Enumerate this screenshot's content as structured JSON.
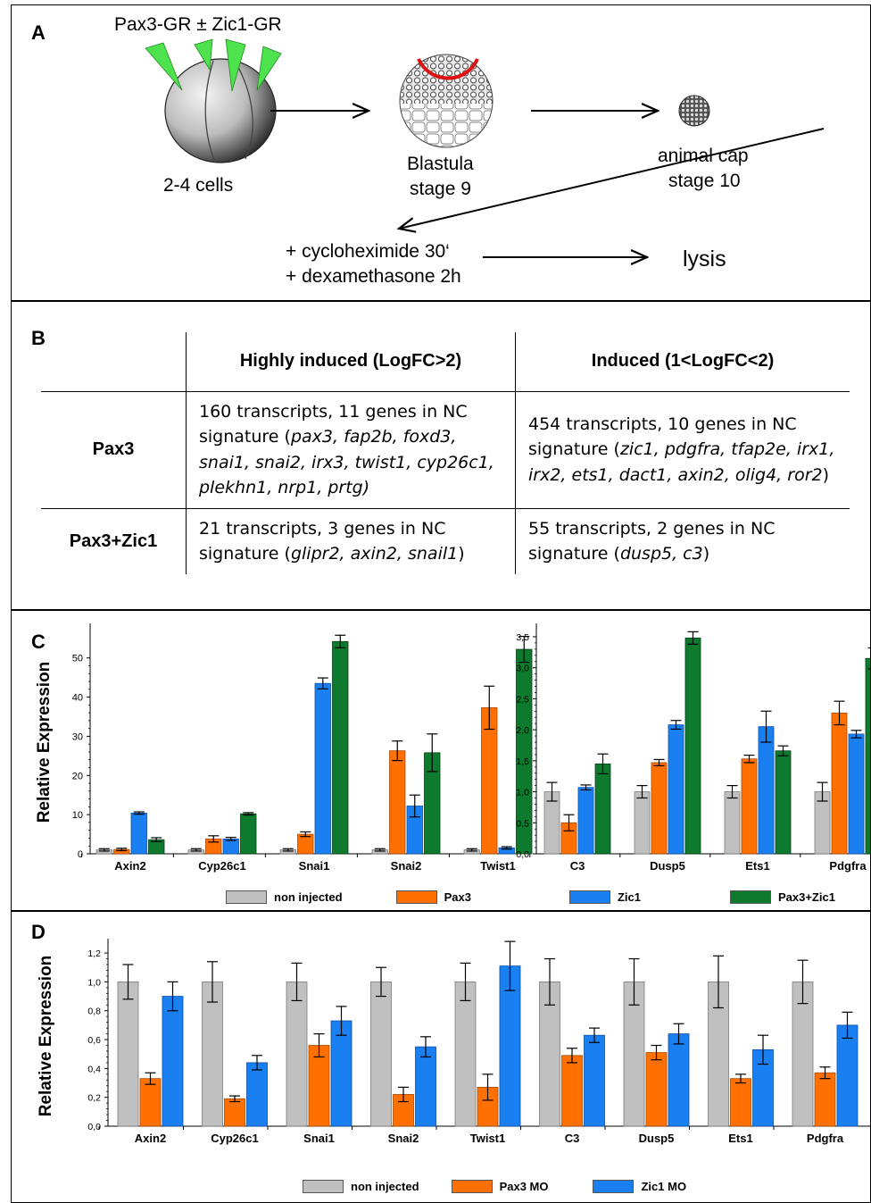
{
  "panelA": {
    "label": "A",
    "injection": "Pax3-GR ± Zic1-GR",
    "cells": "2-4 cells",
    "blastula_line1": "Blastula",
    "blastula_line2": "stage 9",
    "cap_line1": "animal cap",
    "cap_line2": "stage 10",
    "treatment_line1": "+ cycloheximide 30‘",
    "treatment_line2": "+ dexamethasone 2h",
    "lysis": "lysis"
  },
  "panelB": {
    "label": "B",
    "col1_header": "Highly induced (LogFC>2)",
    "col2_header": "Induced (1<LogFC<2)",
    "rows": [
      {
        "label": "Pax3",
        "c1_prefix": "160 transcripts, 11 genes in NC signature (",
        "c1_genes": "pax3, fap2b, foxd3, snai1, snai2, irx3, twist1, cyp26c1, plekhn1, nrp1, prtg)",
        "c1_suffix": "",
        "c2_prefix": "454 transcripts, 10 genes in NC signature (",
        "c2_genes": "zic1, pdgfra, tfap2e, irx1, irx2, ets1, dact1, axin2, olig4, ror2",
        "c2_suffix": ")"
      },
      {
        "label": "Pax3+Zic1",
        "c1_prefix": "21 transcripts, 3 genes in NC signature (",
        "c1_genes": "glipr2, axin2, snail1",
        "c1_suffix": ")",
        "c2_prefix": "55 transcripts, 2 genes in NC signature (",
        "c2_genes": "dusp5, c3",
        "c2_suffix": ")"
      }
    ]
  },
  "panelC": {
    "label": "C"
  },
  "panelD": {
    "label": "D"
  },
  "legendC": [
    "non injected",
    "Pax3",
    "Zic1",
    "Pax3+Zic1"
  ],
  "legendD": [
    "non injected",
    "Pax3 MO",
    "Zic1 MO"
  ],
  "colors": {
    "gray": "#c0c0c0",
    "orange": "#ff7000",
    "blue": "#1a7ff0",
    "green": "#0e7a2e"
  },
  "chart_data": [
    {
      "type": "bar",
      "ylabel": "Relative Expression",
      "ylim": [
        0,
        57
      ],
      "yticks": [
        0,
        10,
        20,
        30,
        40,
        50
      ],
      "categories": [
        "Axin2",
        "Cyp26c1",
        "Snai1",
        "Snai2",
        "Twist1"
      ],
      "series": [
        {
          "name": "non injected",
          "values": [
            1,
            1,
            1,
            1,
            1
          ],
          "errors": [
            0.3,
            0.3,
            0.3,
            0.3,
            0.3
          ]
        },
        {
          "name": "Pax3",
          "values": [
            1.1,
            3.8,
            5.0,
            26.3,
            37.3
          ],
          "errors": [
            0.3,
            0.8,
            0.6,
            2.5,
            5.5
          ]
        },
        {
          "name": "Zic1",
          "values": [
            10.4,
            3.8,
            43.5,
            12.2,
            1.5
          ],
          "errors": [
            0.3,
            0.4,
            1.4,
            2.8,
            0.3
          ]
        },
        {
          "name": "Pax3+Zic1",
          "values": [
            3.6,
            10.2,
            54.2,
            25.8,
            52.2
          ],
          "errors": [
            0.5,
            0.3,
            1.6,
            4.8,
            3.3
          ]
        }
      ]
    },
    {
      "type": "bar",
      "ylim": [
        0,
        3.6
      ],
      "yticks": [
        "0,0",
        "0,5",
        "1,0",
        "1,5",
        "2,0",
        "2,5",
        "3,0",
        "3,5"
      ],
      "categories": [
        "C3",
        "Dusp5",
        "Ets1",
        "Pdgfra"
      ],
      "series": [
        {
          "name": "non injected",
          "values": [
            1.0,
            1.0,
            1.0,
            1.0
          ],
          "errors": [
            0.15,
            0.1,
            0.1,
            0.15
          ]
        },
        {
          "name": "Pax3",
          "values": [
            0.5,
            1.47,
            1.53,
            2.27
          ],
          "errors": [
            0.13,
            0.05,
            0.06,
            0.19
          ]
        },
        {
          "name": "Zic1",
          "values": [
            1.07,
            2.08,
            2.05,
            1.93
          ],
          "errors": [
            0.04,
            0.07,
            0.25,
            0.06
          ]
        },
        {
          "name": "Pax3+Zic1",
          "values": [
            1.45,
            3.48,
            1.66,
            3.15
          ],
          "errors": [
            0.16,
            0.1,
            0.08,
            0.17
          ]
        }
      ]
    },
    {
      "type": "bar",
      "ylabel": "Relative Expression",
      "ylim": [
        0,
        1.25
      ],
      "yticks": [
        "0,0",
        "0,2",
        "0,4",
        "0,6",
        "0,8",
        "1,0",
        "1,2"
      ],
      "categories": [
        "Axin2",
        "Cyp26c1",
        "Snai1",
        "Snai2",
        "Twist1",
        "C3",
        "Dusp5",
        "Ets1",
        "Pdgfra"
      ],
      "series": [
        {
          "name": "non injected",
          "values": [
            1,
            1,
            1,
            1,
            1,
            1,
            1,
            1,
            1
          ],
          "errors": [
            0.12,
            0.14,
            0.13,
            0.1,
            0.13,
            0.16,
            0.16,
            0.18,
            0.15
          ]
        },
        {
          "name": "Pax3 MO",
          "values": [
            0.33,
            0.19,
            0.56,
            0.22,
            0.27,
            0.49,
            0.51,
            0.33,
            0.37
          ],
          "errors": [
            0.04,
            0.02,
            0.08,
            0.05,
            0.09,
            0.05,
            0.05,
            0.03,
            0.04
          ]
        },
        {
          "name": "Zic1 MO",
          "values": [
            0.9,
            0.44,
            0.73,
            0.55,
            1.11,
            0.63,
            0.64,
            0.53,
            0.7
          ],
          "errors": [
            0.1,
            0.05,
            0.1,
            0.07,
            0.17,
            0.05,
            0.07,
            0.1,
            0.09
          ]
        }
      ]
    }
  ]
}
